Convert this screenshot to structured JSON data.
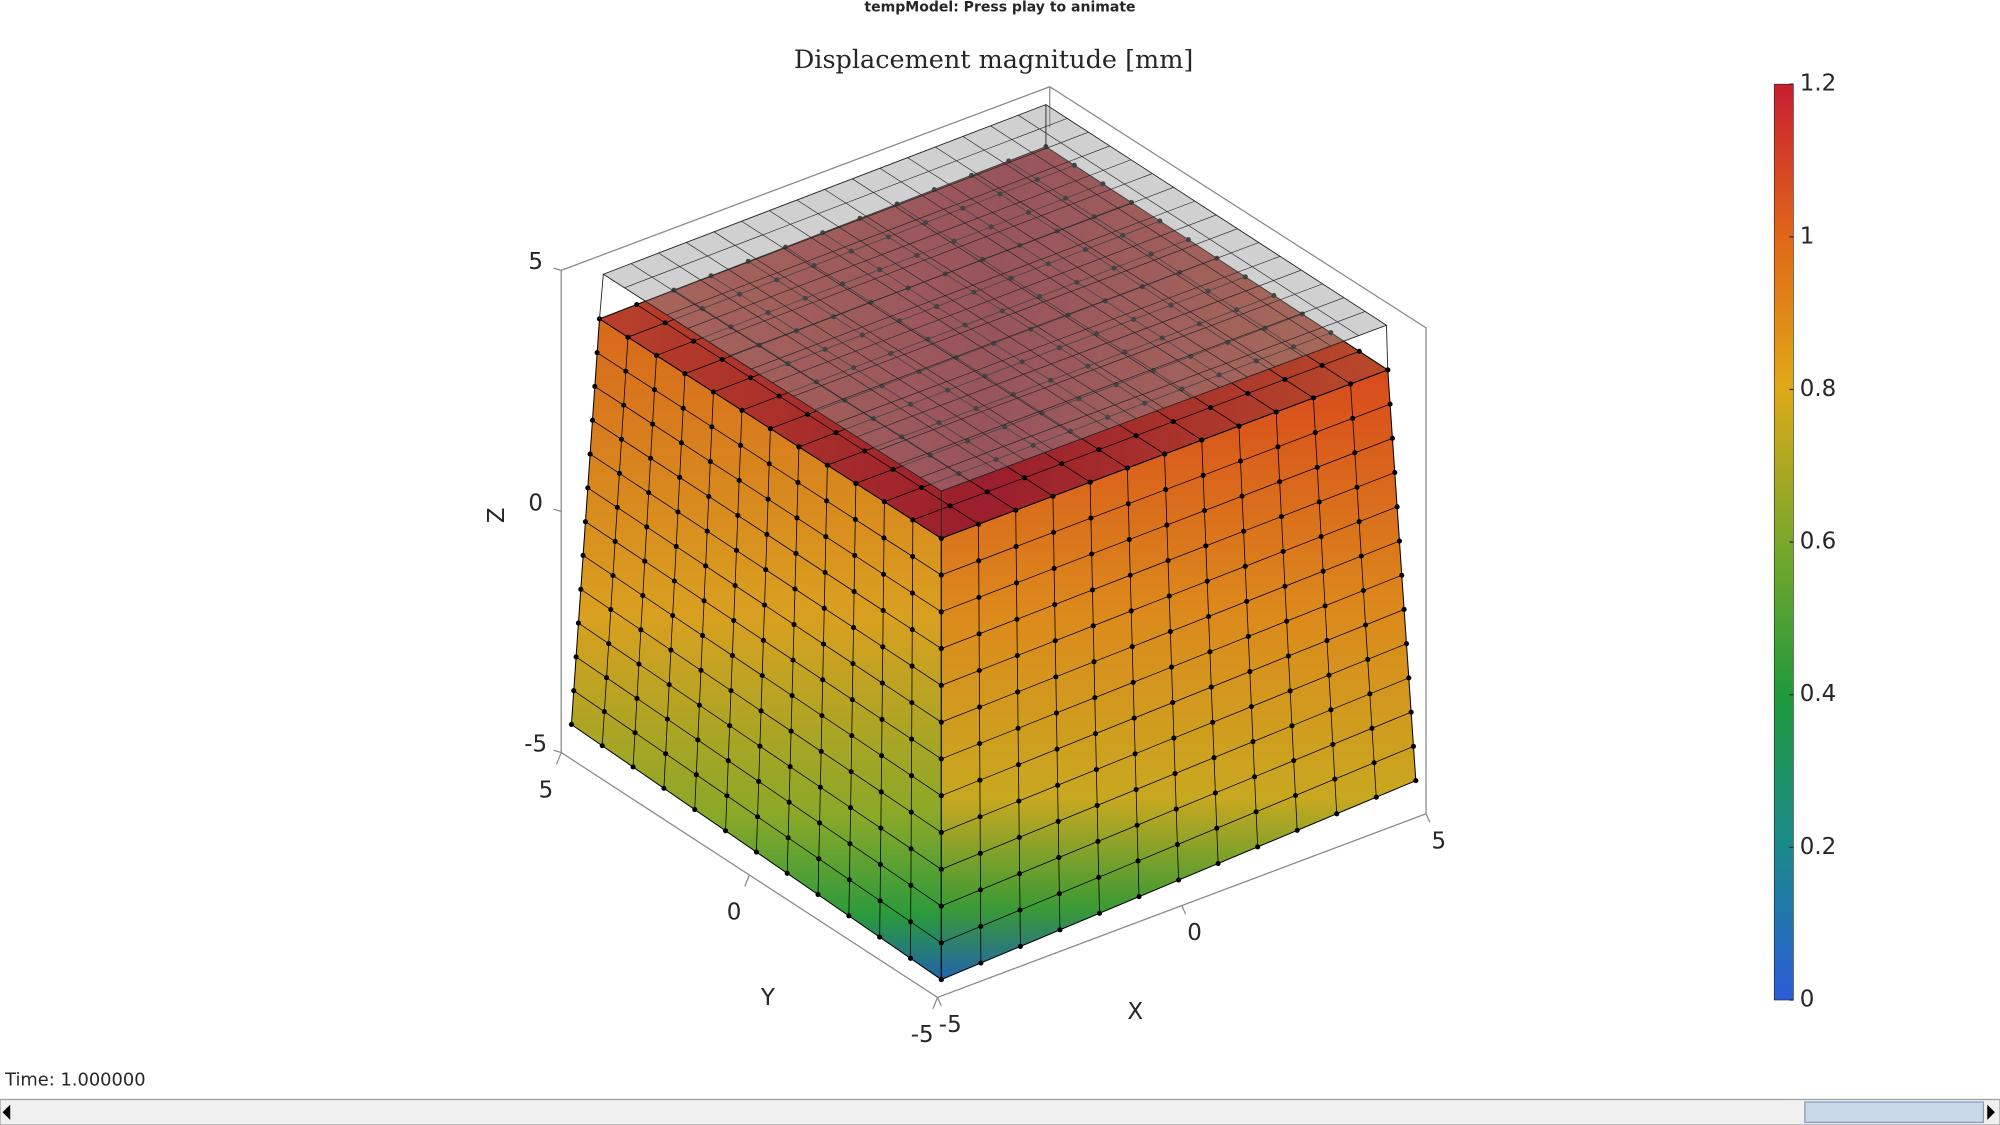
{
  "window_title": "tempModel: Press play to animate",
  "axes": {
    "title": "Displacement magnitude [mm]",
    "xlabel": "X",
    "ylabel": "Y",
    "zlabel": "Z",
    "xticks": [
      -5,
      0,
      5
    ],
    "yticks": [
      -5,
      0,
      5
    ],
    "zticks": [
      -5,
      0,
      5
    ]
  },
  "colorbar": {
    "limits": [
      0,
      1.2
    ],
    "ticks": [
      0,
      0.2,
      0.4,
      0.6,
      0.8,
      1,
      1.2
    ]
  },
  "status": "Time: 1.000000"
}
